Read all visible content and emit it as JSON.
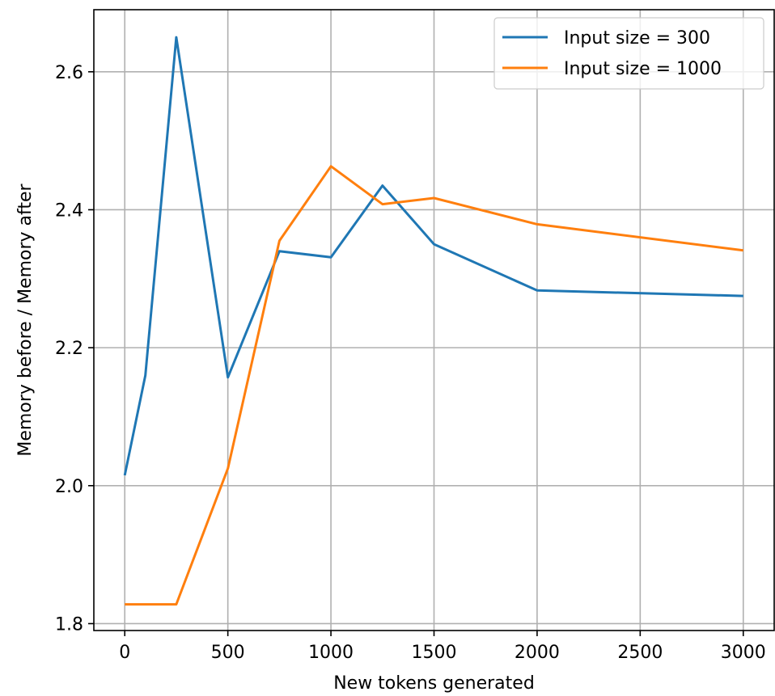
{
  "chart_data": {
    "type": "line",
    "title": "",
    "xlabel": "New tokens generated",
    "ylabel": "Memory before / Memory after",
    "xlim": [
      -150,
      3150
    ],
    "ylim": [
      1.79,
      2.69
    ],
    "xticks": [
      0,
      500,
      1000,
      1500,
      2000,
      2500,
      3000
    ],
    "yticks": [
      1.8,
      2.0,
      2.2,
      2.4,
      2.6
    ],
    "xtick_labels": [
      "0",
      "500",
      "1000",
      "1500",
      "2000",
      "2500",
      "3000"
    ],
    "ytick_labels": [
      "1.8",
      "2.0",
      "2.2",
      "2.4",
      "2.6"
    ],
    "grid": true,
    "legend": "top-right",
    "series": [
      {
        "name": "Input size = 300",
        "color": "#1f77b4",
        "x": [
          0,
          100,
          250,
          500,
          750,
          1000,
          1250,
          1500,
          2000,
          3000
        ],
        "y": [
          2.015,
          2.16,
          2.65,
          2.157,
          2.34,
          2.331,
          2.435,
          2.35,
          2.283,
          2.275
        ]
      },
      {
        "name": "Input size = 1000",
        "color": "#ff7f0e",
        "x": [
          0,
          250,
          500,
          750,
          1000,
          1250,
          1500,
          2000,
          3000
        ],
        "y": [
          1.828,
          1.828,
          2.025,
          2.355,
          2.463,
          2.408,
          2.417,
          2.379,
          2.341
        ]
      }
    ]
  }
}
